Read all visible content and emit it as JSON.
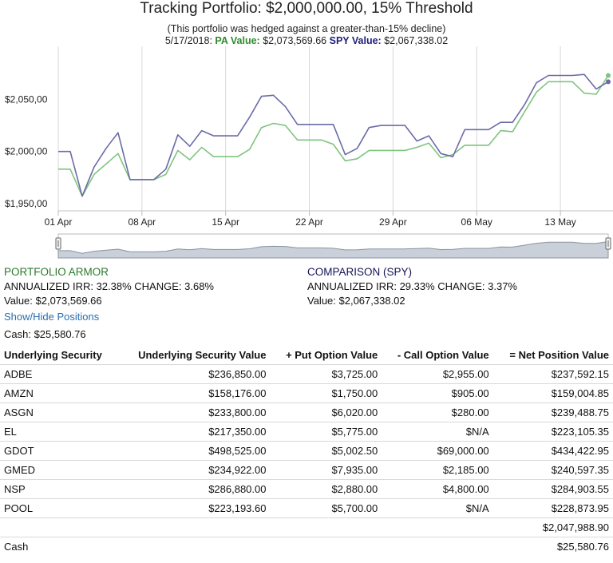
{
  "title": "Tracking Portfolio: $2,000,000.00, 15% Threshold",
  "subtitle_note": "(This portfolio was hedged against a greater-than-15% decline)",
  "subtitle_date": "5/17/2018:",
  "subtitle_pa_label": "PA Value:",
  "subtitle_pa_value": "$2,073,569.66",
  "subtitle_spy_label": "SPY Value:",
  "subtitle_spy_value": "$2,067,338.02",
  "colors": {
    "pa": "#7fc47f",
    "spy": "#6b6ba8",
    "grid": "#d8d8d8",
    "navigator": "#c9d0d9"
  },
  "chart_data": {
    "type": "line",
    "title": "Tracking Portfolio: $2,000,000.00, 15% Threshold",
    "x_tick_labels": [
      "01 Apr",
      "08 Apr",
      "15 Apr",
      "22 Apr",
      "29 Apr",
      "06 May",
      "13 May"
    ],
    "y_tick_labels": [
      "$1,950,00",
      "$2,000,00",
      "$2,050,00"
    ],
    "y_ticks": [
      1950000,
      2000000,
      2050000
    ],
    "ylim": [
      1943000,
      2101000
    ],
    "xlim": [
      0,
      46
    ],
    "series": [
      {
        "name": "PA Value",
        "x": [
          0,
          1,
          2,
          3,
          4,
          5,
          6,
          7,
          8,
          9,
          10,
          11,
          12,
          13,
          14,
          15,
          16,
          17,
          18,
          19,
          20,
          21,
          22,
          23,
          24,
          25,
          26,
          27,
          28,
          29,
          30,
          31,
          32,
          33,
          34,
          35,
          36,
          37,
          38,
          39,
          40,
          41,
          42,
          43,
          44,
          45,
          46
        ],
        "values": [
          1983000,
          1983000,
          1957000,
          1978000,
          1988000,
          1998000,
          1973000,
          1973000,
          1973000,
          1978000,
          2001000,
          1992000,
          2004000,
          1995000,
          1995000,
          1995000,
          2002000,
          2023000,
          2027000,
          2025000,
          2011000,
          2011000,
          2011000,
          2007000,
          1991000,
          1993000,
          2001000,
          2001000,
          2001000,
          2001000,
          2004000,
          2008000,
          1994000,
          1997000,
          2006000,
          2006000,
          2006000,
          2020000,
          2019000,
          2038000,
          2057000,
          2067000,
          2067000,
          2067000,
          2056000,
          2055000,
          2073000
        ]
      },
      {
        "name": "SPY Value",
        "x": [
          0,
          1,
          2,
          3,
          4,
          5,
          6,
          7,
          8,
          9,
          10,
          11,
          12,
          13,
          14,
          15,
          16,
          17,
          18,
          19,
          20,
          21,
          22,
          23,
          24,
          25,
          26,
          27,
          28,
          29,
          30,
          31,
          32,
          33,
          34,
          35,
          36,
          37,
          38,
          39,
          40,
          41,
          42,
          43,
          44,
          45,
          46
        ],
        "values": [
          2000000,
          2000000,
          1957000,
          1985000,
          2003000,
          2018000,
          1973000,
          1973000,
          1973000,
          1983000,
          2016000,
          2005000,
          2020000,
          2015000,
          2015000,
          2015000,
          2033000,
          2053000,
          2054000,
          2043000,
          2026000,
          2026000,
          2026000,
          2026000,
          1997000,
          2003000,
          2023000,
          2025000,
          2025000,
          2025000,
          2010000,
          2015000,
          1998000,
          1995000,
          2021000,
          2021000,
          2021000,
          2028000,
          2028000,
          2045000,
          2066000,
          2073000,
          2073000,
          2073000,
          2074000,
          2060000,
          2067000
        ]
      }
    ]
  },
  "stats": {
    "pa": {
      "heading": "PORTFOLIO ARMOR",
      "irr_line": "ANNUALIZED IRR: 32.38% CHANGE: 3.68%",
      "value_line": "Value: $2,073,569.66"
    },
    "spy": {
      "heading": "COMPARISON (SPY)",
      "irr_line": "ANNUALIZED IRR: 29.33% CHANGE: 3.37%",
      "value_line": "Value: $2,067,338.02"
    }
  },
  "toggle_label": "Show/Hide Positions",
  "cash_line": "Cash: $25,580.76",
  "table": {
    "headers": [
      "Underlying Security",
      "Underlying Security Value",
      "+ Put Option Value",
      "- Call Option Value",
      "= Net Position Value"
    ],
    "rows": [
      [
        "ADBE",
        "$236,850.00",
        "$3,725.00",
        "$2,955.00",
        "$237,592.15"
      ],
      [
        "AMZN",
        "$158,176.00",
        "$1,750.00",
        "$905.00",
        "$159,004.85"
      ],
      [
        "ASGN",
        "$233,800.00",
        "$6,020.00",
        "$280.00",
        "$239,488.75"
      ],
      [
        "EL",
        "$217,350.00",
        "$5,775.00",
        "$N/A",
        "$223,105.35"
      ],
      [
        "GDOT",
        "$498,525.00",
        "$5,002.50",
        "$69,000.00",
        "$434,422.95"
      ],
      [
        "GMED",
        "$234,922.00",
        "$7,935.00",
        "$2,185.00",
        "$240,597.35"
      ],
      [
        "NSP",
        "$286,880.00",
        "$2,880.00",
        "$4,800.00",
        "$284,903.55"
      ],
      [
        "POOL",
        "$223,193.60",
        "$5,700.00",
        "$N/A",
        "$228,873.95"
      ]
    ],
    "total": "$2,047,988.90",
    "cash_label": "Cash",
    "cash_value": "$25,580.76"
  }
}
